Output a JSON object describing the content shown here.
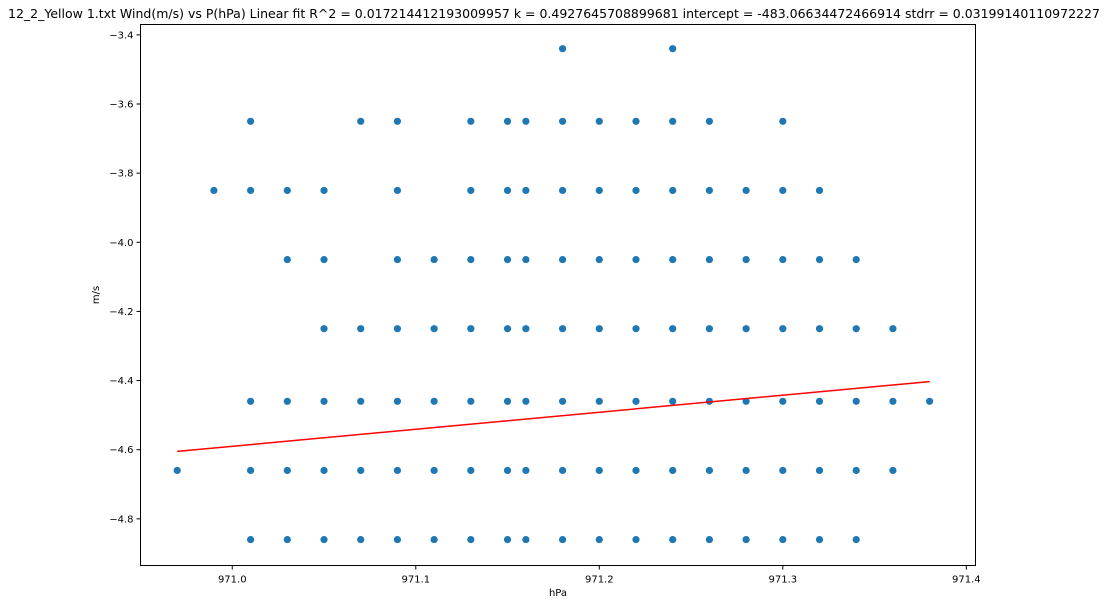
{
  "chart_data": {
    "type": "scatter",
    "title": "12_2_Yellow 1.txt    Wind(m/s) vs P(hPa)    Linear fit    R^2 = 0.017214412193009957  k = 0.4927645708899681  intercept = -483.06634472466914  stdrr = 0.03199140110972227",
    "xlabel": "hPa",
    "ylabel": "m/s",
    "xlim": [
      970.95,
      971.405
    ],
    "ylim": [
      -4.935,
      -3.37
    ],
    "xticks": [
      971.0,
      971.1,
      971.2,
      971.3,
      971.4
    ],
    "xtick_labels": [
      "971.0",
      "971.1",
      "971.2",
      "971.3",
      "971.4"
    ],
    "yticks": [
      -4.8,
      -4.6,
      -4.4,
      -4.2,
      -4.0,
      -3.8,
      -3.6,
      -3.4
    ],
    "ytick_labels": [
      "−4.8",
      "−4.6",
      "−4.4",
      "−4.2",
      "−4.0",
      "−3.8",
      "−3.6",
      "−3.4"
    ],
    "grid": false,
    "colors": {
      "points": "#1f77b4",
      "fit_line": "#ff0000",
      "axes": "#000000"
    },
    "series": [
      {
        "type": "scatter",
        "points": [
          [
            970.97,
            -4.66
          ],
          [
            970.99,
            -3.85
          ],
          [
            971.01,
            -3.65
          ],
          [
            971.01,
            -3.85
          ],
          [
            971.01,
            -4.46
          ],
          [
            971.01,
            -4.66
          ],
          [
            971.01,
            -4.86
          ],
          [
            971.03,
            -3.85
          ],
          [
            971.03,
            -4.05
          ],
          [
            971.03,
            -4.46
          ],
          [
            971.03,
            -4.66
          ],
          [
            971.03,
            -4.86
          ],
          [
            971.05,
            -3.85
          ],
          [
            971.05,
            -4.05
          ],
          [
            971.05,
            -4.25
          ],
          [
            971.05,
            -4.46
          ],
          [
            971.05,
            -4.66
          ],
          [
            971.05,
            -4.86
          ],
          [
            971.07,
            -3.65
          ],
          [
            971.07,
            -4.25
          ],
          [
            971.07,
            -4.46
          ],
          [
            971.07,
            -4.66
          ],
          [
            971.07,
            -4.86
          ],
          [
            971.09,
            -3.65
          ],
          [
            971.09,
            -3.85
          ],
          [
            971.09,
            -4.05
          ],
          [
            971.09,
            -4.25
          ],
          [
            971.09,
            -4.46
          ],
          [
            971.09,
            -4.66
          ],
          [
            971.09,
            -4.86
          ],
          [
            971.11,
            -4.05
          ],
          [
            971.11,
            -4.25
          ],
          [
            971.11,
            -4.46
          ],
          [
            971.11,
            -4.66
          ],
          [
            971.11,
            -4.86
          ],
          [
            971.13,
            -3.65
          ],
          [
            971.13,
            -3.85
          ],
          [
            971.13,
            -4.05
          ],
          [
            971.13,
            -4.25
          ],
          [
            971.13,
            -4.46
          ],
          [
            971.13,
            -4.66
          ],
          [
            971.13,
            -4.86
          ],
          [
            971.15,
            -3.65
          ],
          [
            971.15,
            -3.85
          ],
          [
            971.15,
            -4.05
          ],
          [
            971.15,
            -4.25
          ],
          [
            971.15,
            -4.46
          ],
          [
            971.15,
            -4.66
          ],
          [
            971.15,
            -4.86
          ],
          [
            971.16,
            -3.65
          ],
          [
            971.16,
            -3.85
          ],
          [
            971.16,
            -4.05
          ],
          [
            971.16,
            -4.25
          ],
          [
            971.16,
            -4.46
          ],
          [
            971.16,
            -4.66
          ],
          [
            971.16,
            -4.86
          ],
          [
            971.18,
            -3.44
          ],
          [
            971.18,
            -3.65
          ],
          [
            971.18,
            -3.85
          ],
          [
            971.18,
            -4.05
          ],
          [
            971.18,
            -4.25
          ],
          [
            971.18,
            -4.46
          ],
          [
            971.18,
            -4.66
          ],
          [
            971.18,
            -4.86
          ],
          [
            971.2,
            -3.65
          ],
          [
            971.2,
            -3.85
          ],
          [
            971.2,
            -4.05
          ],
          [
            971.2,
            -4.25
          ],
          [
            971.2,
            -4.46
          ],
          [
            971.2,
            -4.66
          ],
          [
            971.2,
            -4.86
          ],
          [
            971.22,
            -3.65
          ],
          [
            971.22,
            -3.85
          ],
          [
            971.22,
            -4.05
          ],
          [
            971.22,
            -4.25
          ],
          [
            971.22,
            -4.46
          ],
          [
            971.22,
            -4.66
          ],
          [
            971.22,
            -4.86
          ],
          [
            971.24,
            -3.44
          ],
          [
            971.24,
            -3.65
          ],
          [
            971.24,
            -3.85
          ],
          [
            971.24,
            -4.05
          ],
          [
            971.24,
            -4.25
          ],
          [
            971.24,
            -4.46
          ],
          [
            971.24,
            -4.66
          ],
          [
            971.24,
            -4.86
          ],
          [
            971.26,
            -3.65
          ],
          [
            971.26,
            -3.85
          ],
          [
            971.26,
            -4.05
          ],
          [
            971.26,
            -4.25
          ],
          [
            971.26,
            -4.46
          ],
          [
            971.26,
            -4.66
          ],
          [
            971.26,
            -4.86
          ],
          [
            971.28,
            -3.85
          ],
          [
            971.28,
            -4.05
          ],
          [
            971.28,
            -4.25
          ],
          [
            971.28,
            -4.46
          ],
          [
            971.28,
            -4.66
          ],
          [
            971.28,
            -4.86
          ],
          [
            971.3,
            -3.65
          ],
          [
            971.3,
            -3.85
          ],
          [
            971.3,
            -4.05
          ],
          [
            971.3,
            -4.25
          ],
          [
            971.3,
            -4.46
          ],
          [
            971.3,
            -4.66
          ],
          [
            971.3,
            -4.86
          ],
          [
            971.32,
            -3.85
          ],
          [
            971.32,
            -4.05
          ],
          [
            971.32,
            -4.25
          ],
          [
            971.32,
            -4.46
          ],
          [
            971.32,
            -4.66
          ],
          [
            971.32,
            -4.86
          ],
          [
            971.34,
            -4.05
          ],
          [
            971.34,
            -4.25
          ],
          [
            971.34,
            -4.46
          ],
          [
            971.34,
            -4.66
          ],
          [
            971.34,
            -4.86
          ],
          [
            971.36,
            -4.25
          ],
          [
            971.36,
            -4.46
          ],
          [
            971.36,
            -4.66
          ],
          [
            971.38,
            -4.46
          ]
        ]
      },
      {
        "type": "line",
        "points": [
          [
            970.97,
            -4.605
          ],
          [
            971.38,
            -4.403
          ]
        ]
      }
    ]
  }
}
